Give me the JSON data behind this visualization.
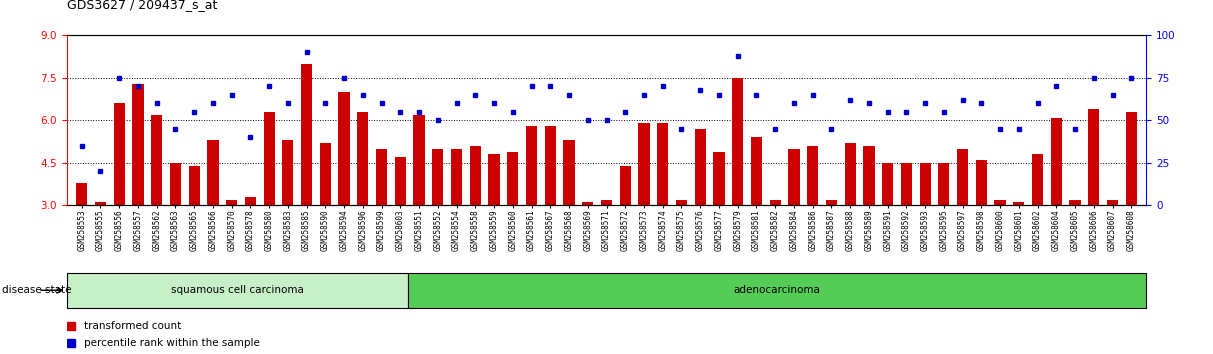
{
  "title": "GDS3627 / 209437_s_at",
  "samples": [
    "GSM258553",
    "GSM258555",
    "GSM258556",
    "GSM258557",
    "GSM258562",
    "GSM258563",
    "GSM258565",
    "GSM258566",
    "GSM258570",
    "GSM258578",
    "GSM258580",
    "GSM258583",
    "GSM258585",
    "GSM258590",
    "GSM258594",
    "GSM258596",
    "GSM258599",
    "GSM258603",
    "GSM258551",
    "GSM258552",
    "GSM258554",
    "GSM258558",
    "GSM258559",
    "GSM258560",
    "GSM258561",
    "GSM258567",
    "GSM258568",
    "GSM258569",
    "GSM258571",
    "GSM258572",
    "GSM258573",
    "GSM258574",
    "GSM258575",
    "GSM258576",
    "GSM258577",
    "GSM258579",
    "GSM258581",
    "GSM258582",
    "GSM258584",
    "GSM258586",
    "GSM258587",
    "GSM258588",
    "GSM258589",
    "GSM258591",
    "GSM258592",
    "GSM258593",
    "GSM258595",
    "GSM258597",
    "GSM258598",
    "GSM258600",
    "GSM258601",
    "GSM258602",
    "GSM258604",
    "GSM258605",
    "GSM258606",
    "GSM258607",
    "GSM258608"
  ],
  "red_values": [
    3.8,
    3.1,
    6.6,
    7.3,
    6.2,
    4.5,
    4.4,
    5.3,
    3.2,
    3.3,
    6.3,
    5.3,
    8.0,
    5.2,
    7.0,
    6.3,
    5.0,
    4.7,
    6.2,
    5.0,
    5.0,
    5.1,
    4.8,
    4.9,
    5.8,
    5.8,
    5.3,
    3.1,
    3.2,
    4.4,
    5.9,
    5.9,
    3.2,
    5.7,
    4.9,
    7.5,
    5.4,
    3.2,
    5.0,
    5.1,
    3.2,
    5.2,
    5.1,
    4.5,
    4.5,
    4.5,
    4.5,
    5.0,
    4.6,
    3.2,
    3.1,
    4.8,
    6.1,
    3.2,
    6.4,
    3.2,
    6.3
  ],
  "blue_values": [
    35,
    20,
    75,
    70,
    60,
    45,
    55,
    60,
    65,
    40,
    70,
    60,
    90,
    60,
    75,
    65,
    60,
    55,
    55,
    50,
    60,
    65,
    60,
    55,
    70,
    70,
    65,
    50,
    50,
    55,
    65,
    70,
    45,
    68,
    65,
    88,
    65,
    45,
    60,
    65,
    45,
    62,
    60,
    55,
    55,
    60,
    55,
    62,
    60,
    45,
    45,
    60,
    70,
    45,
    75,
    65,
    75
  ],
  "squamous_count": 18,
  "ylim_left": [
    3.0,
    9.0
  ],
  "ylim_right": [
    0,
    100
  ],
  "yticks_left": [
    3.0,
    4.5,
    6.0,
    7.5,
    9.0
  ],
  "yticks_right": [
    0,
    25,
    50,
    75,
    100
  ],
  "grid_lines": [
    4.5,
    6.0,
    7.5
  ],
  "bar_color": "#cc0000",
  "dot_color": "#0000cc",
  "squamous_color": "#c8f0c8",
  "adeno_color": "#55cc55",
  "disease_label_squamous": "squamous cell carcinoma",
  "disease_label_adeno": "adenocarcinoma",
  "legend_red": "transformed count",
  "legend_blue": "percentile rank within the sample",
  "xlabel_disease": "disease state"
}
